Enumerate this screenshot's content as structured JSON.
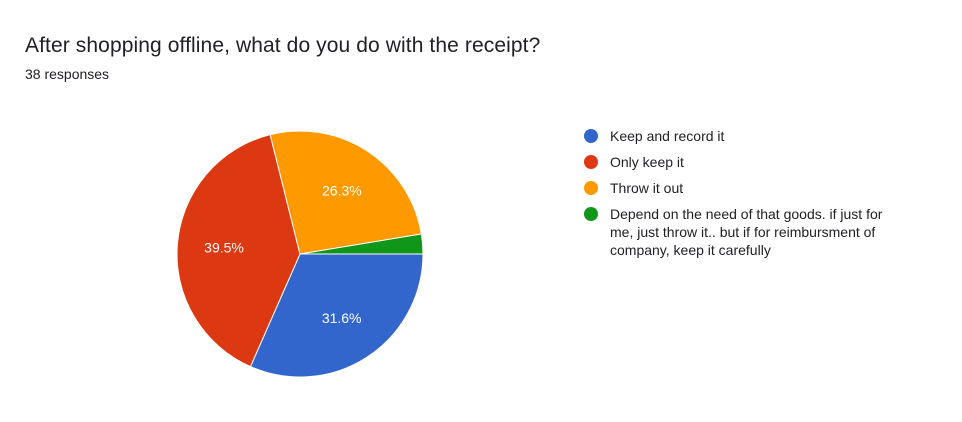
{
  "header": {
    "title": "After shopping offline, what do you do with the receipt?",
    "responses": "38 responses"
  },
  "chart_data": {
    "type": "pie",
    "slices": [
      {
        "label": "Keep and record it",
        "value": 31.6,
        "display": "31.6%",
        "color": "#3366cc"
      },
      {
        "label": "Only keep it",
        "value": 39.5,
        "display": "39.5%",
        "color": "#dc3912"
      },
      {
        "label": "Throw it out",
        "value": 26.3,
        "display": "26.3%",
        "color": "#ff9900"
      },
      {
        "label": "Depend on the need of that goods. if just for me, just throw it.. but if for reimbursment of company, keep it carefully",
        "value": 2.6,
        "display": "",
        "color": "#109618"
      }
    ],
    "legend_position": "right"
  }
}
